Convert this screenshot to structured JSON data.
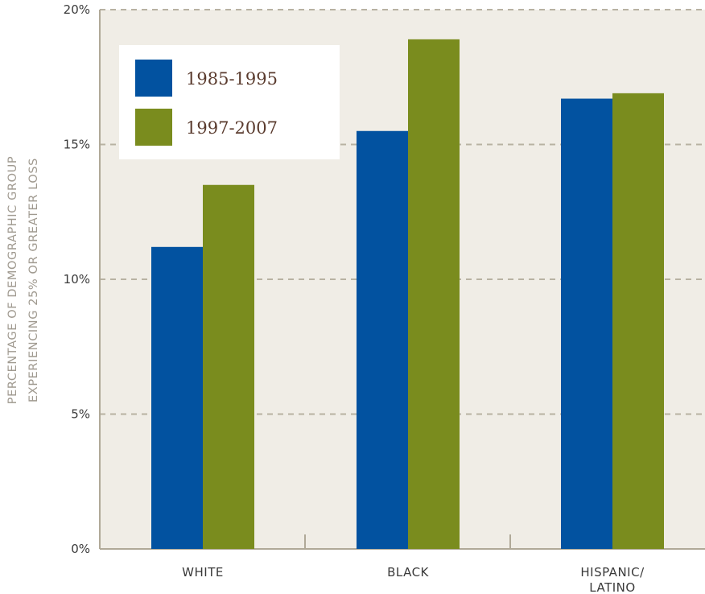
{
  "chart_data": {
    "type": "bar",
    "categories": [
      [
        "WHITE"
      ],
      [
        "BLACK"
      ],
      [
        "HISPANIC/",
        "LATINO"
      ]
    ],
    "series": [
      {
        "name": "1985-1995",
        "color": "#0252a0",
        "values": [
          11.2,
          15.5,
          16.7
        ]
      },
      {
        "name": "1997-2007",
        "color": "#7a8c1e",
        "values": [
          13.5,
          18.9,
          16.9
        ]
      }
    ],
    "ylabel": [
      "PERCENTAGE OF DEMOGRAPHIC GROUP",
      "EXPERIENCING 25% OR GREATER LOSS"
    ],
    "ylim": [
      0,
      20
    ],
    "yticks": [
      0,
      5,
      10,
      15,
      20
    ],
    "ytick_labels": [
      "0%",
      "5%",
      "10%",
      "15%",
      "20%"
    ],
    "grid": true,
    "legend_position": "top-left",
    "plot_background": "#f0ede6",
    "axis_color": "#b0a998",
    "grid_color": "#b8b2a2"
  }
}
